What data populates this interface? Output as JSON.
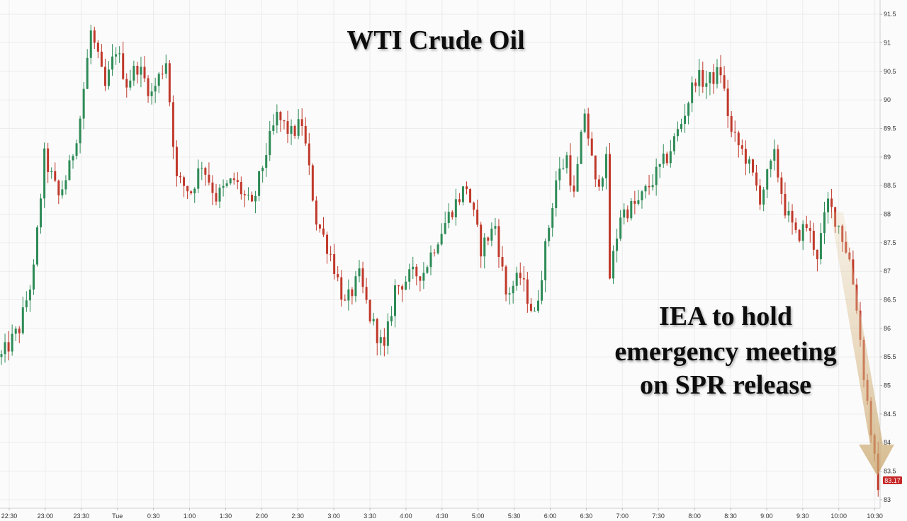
{
  "chart_data": {
    "type": "candlestick",
    "title": "WTI Crude Oil",
    "annotation": [
      "IEA to hold",
      "emergency meeting",
      "on SPR release"
    ],
    "x_tick_labels": [
      "22:30",
      "23:00",
      "23:30",
      "Tue",
      "0:30",
      "1:00",
      "1:30",
      "2:00",
      "2:30",
      "3:00",
      "3:30",
      "4:00",
      "4:30",
      "5:00",
      "5:30",
      "6:00",
      "6:30",
      "7:00",
      "7:30",
      "8:00",
      "8:30",
      "9:00",
      "9:30",
      "10:00",
      "10:30"
    ],
    "y_ticks": [
      83,
      83.5,
      84,
      84.5,
      85,
      85.5,
      86,
      86.5,
      87,
      87.5,
      88,
      88.5,
      89,
      89.5,
      90,
      90.5,
      91,
      91.5
    ],
    "ylim": [
      82.85,
      91.75
    ],
    "grid": true,
    "up_color": "#2e8b57",
    "down_color": "#c0392b",
    "last_price": "83.17",
    "price_path": [
      [
        0,
        85.5
      ],
      [
        5,
        86.0
      ],
      [
        9,
        87.0
      ],
      [
        12,
        89.0
      ],
      [
        16,
        88.3
      ],
      [
        19,
        88.8
      ],
      [
        22,
        89.7
      ],
      [
        25,
        91.2
      ],
      [
        29,
        90.2
      ],
      [
        32,
        90.9
      ],
      [
        35,
        90.3
      ],
      [
        38,
        90.6
      ],
      [
        42,
        90.1
      ],
      [
        46,
        90.7
      ],
      [
        49,
        88.6
      ],
      [
        53,
        88.4
      ],
      [
        56,
        88.9
      ],
      [
        60,
        88.3
      ],
      [
        65,
        88.6
      ],
      [
        70,
        88.1
      ],
      [
        74,
        89.1
      ],
      [
        77,
        89.7
      ],
      [
        81,
        89.4
      ],
      [
        84,
        89.6
      ],
      [
        88,
        87.9
      ],
      [
        92,
        87.3
      ],
      [
        96,
        86.4
      ],
      [
        100,
        86.9
      ],
      [
        103,
        86.2
      ],
      [
        107,
        85.6
      ],
      [
        110,
        86.7
      ],
      [
        114,
        86.9
      ],
      [
        118,
        87.0
      ],
      [
        122,
        87.6
      ],
      [
        126,
        88.1
      ],
      [
        130,
        88.5
      ],
      [
        134,
        87.4
      ],
      [
        138,
        87.8
      ],
      [
        141,
        86.6
      ],
      [
        145,
        86.9
      ],
      [
        149,
        86.2
      ],
      [
        152,
        87.4
      ],
      [
        155,
        88.6
      ],
      [
        158,
        89.0
      ],
      [
        160,
        88.3
      ],
      [
        163,
        89.8
      ],
      [
        166,
        88.5
      ],
      [
        169,
        88.9
      ],
      [
        170,
        86.9
      ],
      [
        173,
        88.0
      ],
      [
        178,
        88.2
      ],
      [
        182,
        88.6
      ],
      [
        186,
        89.0
      ],
      [
        190,
        89.6
      ],
      [
        194,
        90.4
      ],
      [
        197,
        90.3
      ],
      [
        201,
        90.5
      ],
      [
        204,
        89.4
      ],
      [
        208,
        89.0
      ],
      [
        212,
        88.3
      ],
      [
        216,
        89.0
      ],
      [
        219,
        88.1
      ],
      [
        222,
        87.6
      ],
      [
        225,
        87.8
      ],
      [
        228,
        87.3
      ],
      [
        231,
        88.2
      ],
      [
        234,
        87.8
      ],
      [
        237,
        87.2
      ],
      [
        239,
        86.4
      ],
      [
        241,
        85.2
      ],
      [
        243,
        84.2
      ],
      [
        245,
        83.17
      ]
    ]
  }
}
